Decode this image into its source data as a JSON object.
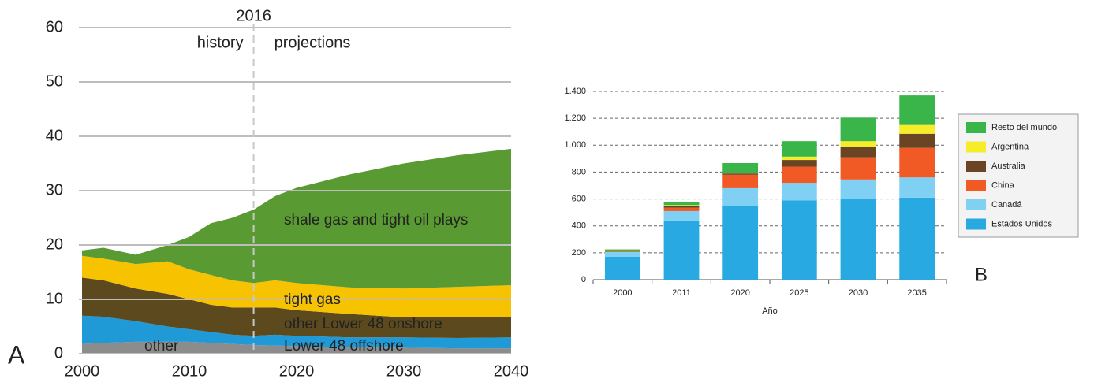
{
  "chart_data": [
    {
      "type": "area",
      "panel": "A",
      "x": [
        2000,
        2002,
        2005,
        2008,
        2010,
        2012,
        2014,
        2016,
        2018,
        2020,
        2025,
        2030,
        2035,
        2040
      ],
      "xlim": [
        2000,
        2040
      ],
      "xticks": [
        2000,
        2010,
        2020,
        2030,
        2040
      ],
      "ylim": [
        0,
        60
      ],
      "yticks": [
        0,
        10,
        20,
        30,
        40,
        50,
        60
      ],
      "grid": true,
      "vline": {
        "x": 2016,
        "label": "2016"
      },
      "annotations": [
        "history",
        "projections"
      ],
      "series": [
        {
          "name": "other",
          "color": "#8c8c8c",
          "label_color": "#ffffff",
          "values": [
            1.8,
            2.0,
            2.2,
            2.2,
            2.2,
            2.0,
            1.8,
            1.6,
            1.5,
            1.4,
            1.2,
            1.1,
            1.0,
            1.0
          ]
        },
        {
          "name": "Lower 48 offshore",
          "color": "#1f9ad6",
          "label_color": "#ffffff",
          "values": [
            5.2,
            4.8,
            3.8,
            2.8,
            2.3,
            2.0,
            1.7,
            1.7,
            2.0,
            1.9,
            1.8,
            1.9,
            1.9,
            2.0
          ]
        },
        {
          "name": "other Lower 48 onshore",
          "color": "#5c4a1e",
          "label_color": "#ffffff",
          "values": [
            7.0,
            6.7,
            6.0,
            6.0,
            5.5,
            5.0,
            5.0,
            5.2,
            5.0,
            4.7,
            4.3,
            3.7,
            3.8,
            3.8
          ]
        },
        {
          "name": "tight gas",
          "color": "#f7c200",
          "label_color": "#222222",
          "values": [
            4.0,
            4.0,
            4.5,
            6.0,
            5.5,
            5.5,
            5.0,
            4.5,
            5.0,
            5.0,
            4.9,
            5.3,
            5.6,
            5.8
          ]
        },
        {
          "name": "shale gas and tight oil plays",
          "color": "#5a9a32",
          "label_color": "#ffffff",
          "values": [
            1.0,
            2.0,
            1.7,
            3.0,
            6.0,
            9.5,
            11.5,
            13.5,
            15.5,
            17.5,
            20.8,
            23.0,
            24.2,
            25.1
          ]
        }
      ]
    },
    {
      "type": "bar",
      "panel": "B",
      "x_label": "Año",
      "categories": [
        "2000",
        "2011",
        "2020",
        "2025",
        "2030",
        "2035"
      ],
      "ylim": [
        0,
        1400
      ],
      "yticks": [
        0,
        200,
        400,
        600,
        800,
        {
          "value": 1000,
          "label": "1.000"
        },
        {
          "value": 1200,
          "label": "1.200"
        },
        {
          "value": 1400,
          "label": "1.400"
        }
      ],
      "grid": true,
      "series": [
        {
          "name": "Estados Unidos",
          "color": "#29a9e1",
          "values": [
            170,
            440,
            550,
            590,
            600,
            610
          ]
        },
        {
          "name": "Canadá",
          "color": "#7fd0f3",
          "values": [
            35,
            70,
            130,
            130,
            145,
            150
          ]
        },
        {
          "name": "China",
          "color": "#f15a24",
          "values": [
            5,
            25,
            100,
            120,
            165,
            220
          ]
        },
        {
          "name": "Australia",
          "color": "#6b4423",
          "values": [
            0,
            10,
            10,
            50,
            80,
            105
          ]
        },
        {
          "name": "Argentina",
          "color": "#f5ec2a",
          "values": [
            0,
            10,
            5,
            25,
            40,
            65
          ]
        },
        {
          "name": "Resto del mundo",
          "color": "#39b54a",
          "values": [
            15,
            25,
            72,
            115,
            175,
            220
          ]
        }
      ]
    }
  ]
}
